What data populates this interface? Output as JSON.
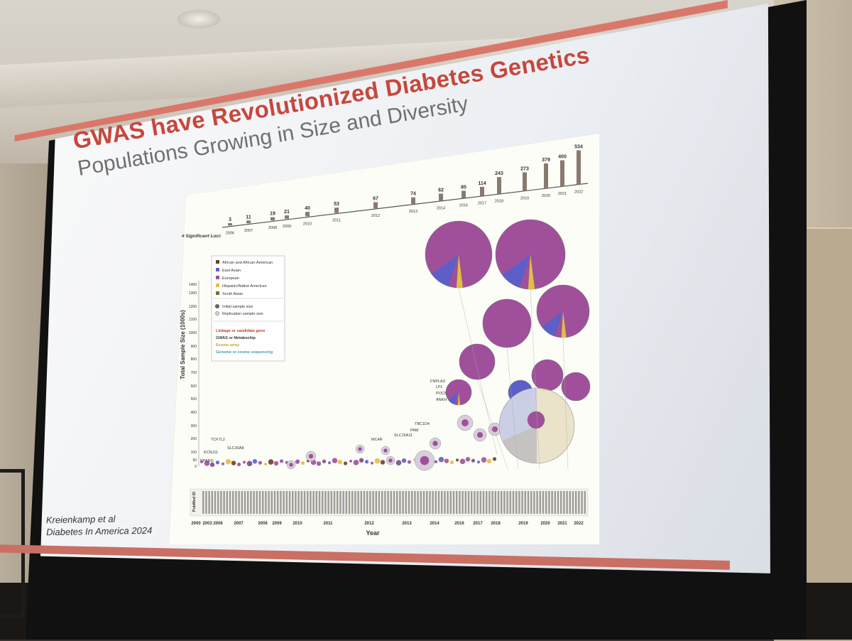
{
  "slide": {
    "title": "GWAS have Revolutionized Diabetes Genetics",
    "subtitle": "Populations Growing in Size and Diversity",
    "citation_line1": "Kreienkamp et al",
    "citation_line2": "Diabetes In America 2024"
  },
  "figure": {
    "loci_label": "# Significant Loci:",
    "loci": [
      {
        "count": "3",
        "year": "2006"
      },
      {
        "count": "11",
        "year": "2007"
      },
      {
        "count": "19",
        "year": "2008"
      },
      {
        "count": "21",
        "year": "2009"
      },
      {
        "count": "40",
        "year": "2010"
      },
      {
        "count": "53",
        "year": "2011"
      },
      {
        "count": "67",
        "year": "2012"
      },
      {
        "count": "74",
        "year": "2013"
      },
      {
        "count": "82",
        "year": "2014"
      },
      {
        "count": "85",
        "year": "2016"
      },
      {
        "count": "114",
        "year": "2017"
      },
      {
        "count": "243",
        "year": "2018"
      },
      {
        "count": "273",
        "year": "2019"
      },
      {
        "count": "379",
        "year": "2020"
      },
      {
        "count": "400",
        "year": "2021"
      },
      {
        "count": "534",
        "year": "2022"
      }
    ],
    "legend_ancestry": [
      "African and African-American",
      "East Asian",
      "European",
      "Hispanic/Native American",
      "South Asian"
    ],
    "legend_ancestry_colors": [
      "#6b3f2a",
      "#5b5fc7",
      "#a0509a",
      "#e0c040",
      "#5d7a3a"
    ],
    "legend_sample": [
      "Initial sample size",
      "Replication sample size"
    ],
    "legend_method": [
      "Linkage or candidate gene",
      "GWAS or Metabochip",
      "Exome array",
      "Genome or exome sequencing"
    ],
    "legend_method_colors": [
      "#c0392b",
      "#333333",
      "#c8a030",
      "#3a9fb0"
    ],
    "y_axis_label": "Total Sample Size (1000s)",
    "y_ticks": [
      "0",
      "50",
      "100",
      "200",
      "300",
      "400",
      "500",
      "600",
      "700",
      "800",
      "900",
      "1000",
      "1100",
      "1200",
      "1300",
      "1400"
    ],
    "x_axis_label": "Year",
    "pubmed_label": "PubMed ID",
    "x_years": [
      "2000",
      "2003",
      "2006",
      "2007",
      "2008",
      "2009",
      "2010",
      "2011",
      "2012",
      "2013",
      "2014",
      "2016",
      "2017",
      "2018",
      "2019",
      "2020",
      "2021",
      "2022"
    ],
    "gene_labels": [
      "PPARG",
      "KCNJ11",
      "TCF7L2",
      "SLC30A8",
      "MC4R",
      "SLC16A11",
      "PAM",
      "TBC1D4",
      "FNPLA3",
      "LPL",
      "POC5",
      "ANKH"
    ]
  },
  "chart_data": {
    "type": "scatter",
    "title": "",
    "xlabel": "Year",
    "ylabel": "Total Sample Size (1000s)",
    "ylim": [
      0,
      1400
    ],
    "loci_by_year": {
      "x": [
        2006,
        2007,
        2008,
        2009,
        2010,
        2011,
        2012,
        2013,
        2014,
        2016,
        2017,
        2018,
        2019,
        2020,
        2021,
        2022
      ],
      "values": [
        3,
        11,
        19,
        21,
        40,
        53,
        67,
        74,
        82,
        85,
        114,
        243,
        273,
        379,
        400,
        534
      ]
    }
  }
}
